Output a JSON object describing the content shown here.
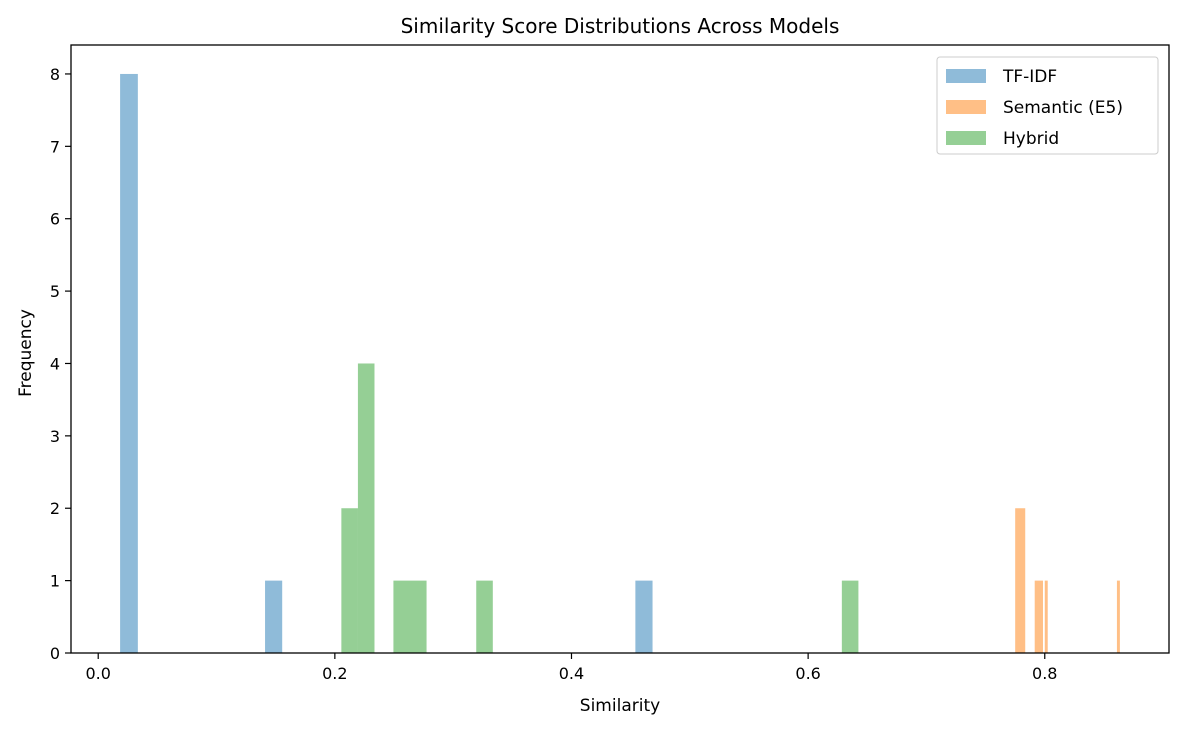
{
  "chart_data": {
    "type": "histogram",
    "title": "Similarity Score Distributions Across Models",
    "xlabel": "Similarity",
    "ylabel": "Frequency",
    "xlim": [
      -0.023,
      0.905
    ],
    "ylim": [
      0,
      8.4
    ],
    "xticks": [
      0.0,
      0.2,
      0.4,
      0.6,
      0.8
    ],
    "xtick_labels": [
      "0.0",
      "0.2",
      "0.4",
      "0.6",
      "0.8"
    ],
    "yticks": [
      0,
      1,
      2,
      3,
      4,
      5,
      6,
      7,
      8
    ],
    "ytick_labels": [
      "0",
      "1",
      "2",
      "3",
      "4",
      "5",
      "6",
      "7",
      "8"
    ],
    "grid": false,
    "legend_position": "top-right",
    "series": [
      {
        "name": "TF-IDF",
        "color": "#1f77b4",
        "opacity": 0.5,
        "bins": [
          {
            "x0": 0.0185,
            "x1": 0.0335,
            "count": 8
          },
          {
            "x0": 0.141,
            "x1": 0.1555,
            "count": 1
          },
          {
            "x0": 0.454,
            "x1": 0.4685,
            "count": 1
          }
        ]
      },
      {
        "name": "Semantic (E5)",
        "color": "#ff7f0e",
        "opacity": 0.5,
        "bins": [
          {
            "x0": 0.775,
            "x1": 0.7835,
            "count": 2
          },
          {
            "x0": 0.7915,
            "x1": 0.7985,
            "count": 1
          },
          {
            "x0": 0.8,
            "x1": 0.8025,
            "count": 1
          },
          {
            "x0": 0.861,
            "x1": 0.8635,
            "count": 1
          }
        ]
      },
      {
        "name": "Hybrid",
        "color": "#2ca02c",
        "opacity": 0.5,
        "bins": [
          {
            "x0": 0.2055,
            "x1": 0.2195,
            "count": 2
          },
          {
            "x0": 0.2195,
            "x1": 0.2335,
            "count": 4
          },
          {
            "x0": 0.2495,
            "x1": 0.2775,
            "count": 1
          },
          {
            "x0": 0.3195,
            "x1": 0.3335,
            "count": 1
          },
          {
            "x0": 0.6285,
            "x1": 0.6425,
            "count": 1
          }
        ]
      }
    ]
  }
}
